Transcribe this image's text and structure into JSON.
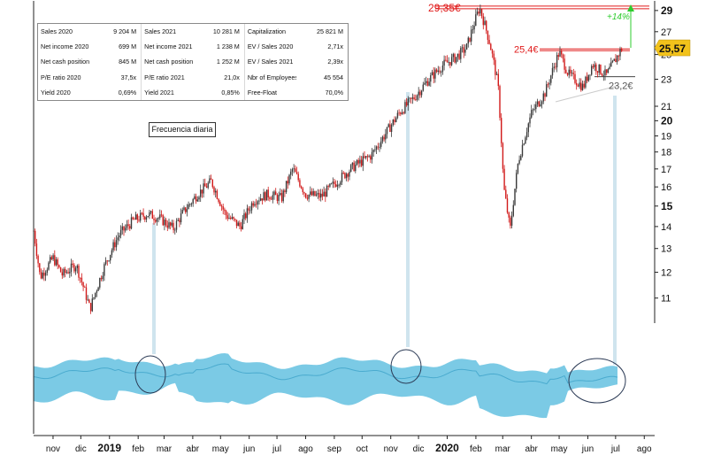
{
  "table": {
    "rows": [
      [
        [
          "Sales 2020",
          "9 204 M"
        ],
        [
          "Sales 2021",
          "10 281 M"
        ],
        [
          "Capitalization",
          "25 821 M"
        ]
      ],
      [
        [
          "Net income 2020",
          "699 M"
        ],
        [
          "Net income 2021",
          "1 238 M"
        ],
        [
          "EV / Sales 2020",
          "2,71x"
        ]
      ],
      [
        [
          "Net cash position 2020",
          "845 M"
        ],
        [
          "Net cash position 2021",
          "1 252 M"
        ],
        [
          "EV / Sales 2021",
          "2,39x"
        ]
      ],
      [
        [
          "P/E ratio 2020",
          "37,5x"
        ],
        [
          "P/E ratio 2021",
          "21,0x"
        ],
        [
          "Nbr of Employees",
          "45 554"
        ]
      ],
      [
        [
          "Yield 2020",
          "0,69%"
        ],
        [
          "Yield 2021",
          "0,85%"
        ],
        [
          "Free-Float",
          "70,0%"
        ]
      ]
    ]
  },
  "frequency_label": "Frecuencia diaria",
  "chart_data": {
    "type": "candlestick",
    "y_scale": "log",
    "ylim": [
      10.2,
      29.6
    ],
    "y_ticks": [
      {
        "label": "11",
        "value": 11,
        "bold": false
      },
      {
        "label": "12",
        "value": 12,
        "bold": false
      },
      {
        "label": "13",
        "value": 13,
        "bold": false
      },
      {
        "label": "14",
        "value": 14,
        "bold": false
      },
      {
        "label": "15",
        "value": 15,
        "bold": true
      },
      {
        "label": "16",
        "value": 16,
        "bold": false
      },
      {
        "label": "17",
        "value": 17,
        "bold": false
      },
      {
        "label": "18",
        "value": 18,
        "bold": false
      },
      {
        "label": "19",
        "value": 19,
        "bold": false
      },
      {
        "label": "20",
        "value": 20,
        "bold": true
      },
      {
        "label": "21",
        "value": 21,
        "bold": false
      },
      {
        "label": "23",
        "value": 23,
        "bold": false
      },
      {
        "label": "25",
        "value": 25,
        "bold": false
      },
      {
        "label": "27",
        "value": 27,
        "bold": false
      },
      {
        "label": "29",
        "value": 29,
        "bold": true
      }
    ],
    "x_labels": [
      {
        "label": "nov",
        "date": "2018-11",
        "bold": false
      },
      {
        "label": "dic",
        "date": "2018-12",
        "bold": false
      },
      {
        "label": "2019",
        "date": "2019-01",
        "bold": true
      },
      {
        "label": "feb",
        "date": "2019-02",
        "bold": false
      },
      {
        "label": "mar",
        "date": "2019-03",
        "bold": false
      },
      {
        "label": "abr",
        "date": "2019-04",
        "bold": false
      },
      {
        "label": "may",
        "date": "2019-05",
        "bold": false
      },
      {
        "label": "jun",
        "date": "2019-06",
        "bold": false
      },
      {
        "label": "jul",
        "date": "2019-07",
        "bold": false
      },
      {
        "label": "ago",
        "date": "2019-08",
        "bold": false
      },
      {
        "label": "sep",
        "date": "2019-09",
        "bold": false
      },
      {
        "label": "oct",
        "date": "2019-10",
        "bold": false
      },
      {
        "label": "nov",
        "date": "2019-11",
        "bold": false
      },
      {
        "label": "dic",
        "date": "2019-12",
        "bold": false
      },
      {
        "label": "2020",
        "date": "2020-01",
        "bold": true
      },
      {
        "label": "feb",
        "date": "2020-02",
        "bold": false
      },
      {
        "label": "mar",
        "date": "2020-03",
        "bold": false
      },
      {
        "label": "abr",
        "date": "2020-04",
        "bold": false
      },
      {
        "label": "may",
        "date": "2020-05",
        "bold": false
      },
      {
        "label": "jun",
        "date": "2020-06",
        "bold": false
      },
      {
        "label": "jul",
        "date": "2020-07",
        "bold": false
      },
      {
        "label": "ago",
        "date": "2020-08",
        "bold": false
      }
    ],
    "price_path": [
      [
        "2018-10-25",
        13.8
      ],
      [
        "2018-11-01",
        11.8
      ],
      [
        "2018-11-15",
        12.6
      ],
      [
        "2018-11-25",
        11.9
      ],
      [
        "2018-12-10",
        12.3
      ],
      [
        "2018-12-25",
        10.6
      ],
      [
        "2019-01-10",
        12.3
      ],
      [
        "2019-01-25",
        13.6
      ],
      [
        "2019-02-10",
        14.3
      ],
      [
        "2019-02-25",
        14.6
      ],
      [
        "2019-03-10",
        14.4
      ],
      [
        "2019-03-25",
        13.9
      ],
      [
        "2019-04-05",
        14.7
      ],
      [
        "2019-04-20",
        15.6
      ],
      [
        "2019-05-05",
        16.3
      ],
      [
        "2019-05-20",
        14.6
      ],
      [
        "2019-06-05",
        14.0
      ],
      [
        "2019-06-20",
        15.3
      ],
      [
        "2019-07-05",
        15.6
      ],
      [
        "2019-07-20",
        15.4
      ],
      [
        "2019-08-01",
        17.0
      ],
      [
        "2019-08-15",
        15.6
      ],
      [
        "2019-09-01",
        15.5
      ],
      [
        "2019-09-20",
        16.4
      ],
      [
        "2019-10-05",
        17.1
      ],
      [
        "2019-10-25",
        17.8
      ],
      [
        "2019-11-10",
        19.2
      ],
      [
        "2019-11-25",
        20.6
      ],
      [
        "2019-12-10",
        21.6
      ],
      [
        "2019-12-25",
        22.9
      ],
      [
        "2020-01-10",
        24.1
      ],
      [
        "2020-01-25",
        24.8
      ],
      [
        "2020-02-05",
        25.6
      ],
      [
        "2020-02-19",
        29.3
      ],
      [
        "2020-03-01",
        26.0
      ],
      [
        "2020-03-10",
        22.5
      ],
      [
        "2020-03-16",
        16.0
      ],
      [
        "2020-03-23",
        13.8
      ],
      [
        "2020-04-01",
        17.5
      ],
      [
        "2020-04-15",
        20.5
      ],
      [
        "2020-04-30",
        22.0
      ],
      [
        "2020-05-15",
        25.2
      ],
      [
        "2020-05-25",
        23.4
      ],
      [
        "2020-06-10",
        22.4
      ],
      [
        "2020-06-20",
        24.2
      ],
      [
        "2020-07-05",
        23.3
      ],
      [
        "2020-07-15",
        24.6
      ],
      [
        "2020-07-22",
        25.57
      ]
    ],
    "annotations": {
      "high": {
        "label": "29,35€",
        "value": 29.35,
        "color": "#e01b1b"
      },
      "resistance": {
        "label": "25,4€",
        "value": 25.4,
        "color": "#e01b1b"
      },
      "support": {
        "label": "23,2€",
        "value": 23.2,
        "color": "#555555"
      },
      "upside": {
        "label": "+14%",
        "color": "#2ecc2e"
      },
      "last_price": {
        "label": "25,57",
        "value": 25.57,
        "color": "#f2c21b"
      }
    },
    "colors": {
      "up": "#3a3a3a",
      "down": "#d11a1a",
      "volume_band": "#4fb8dc",
      "pointer": "#cfe4ee"
    },
    "volume_band_highlights": [
      "2019-02",
      "2019-11",
      "2020-07"
    ]
  }
}
